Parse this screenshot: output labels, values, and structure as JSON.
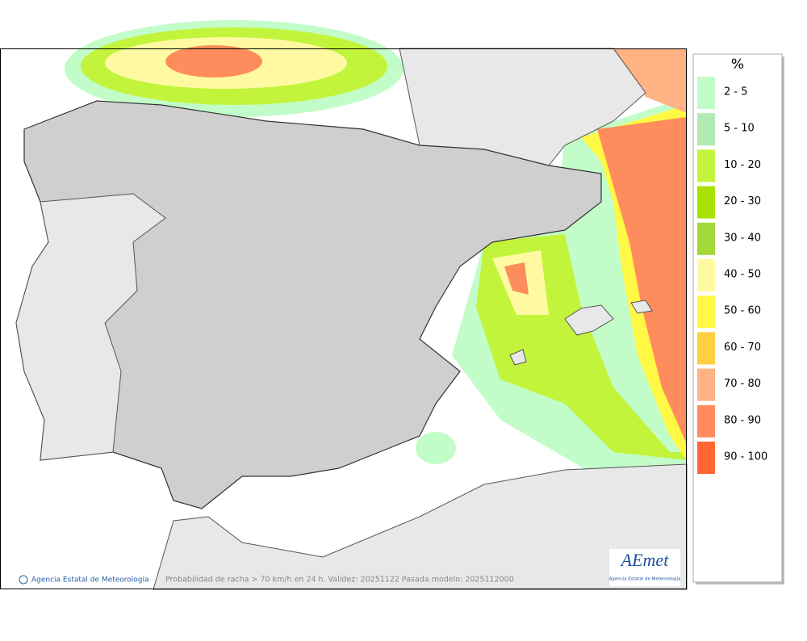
{
  "legend": {
    "title": "%",
    "items": [
      {
        "label": "2 - 5",
        "color": "#c2fcc8"
      },
      {
        "label": "5 - 10",
        "color": "#b2eab4"
      },
      {
        "label": "10 - 20",
        "color": "#c2f43c"
      },
      {
        "label": "20 - 30",
        "color": "#a8e202"
      },
      {
        "label": "30 - 40",
        "color": "#a2d838"
      },
      {
        "label": "40 - 50",
        "color": "#fffaa2"
      },
      {
        "label": "50 - 60",
        "color": "#fff844"
      },
      {
        "label": "60 - 70",
        "color": "#ffd040"
      },
      {
        "label": "70 - 80",
        "color": "#ffb284"
      },
      {
        "label": "80 - 90",
        "color": "#ff8c5c"
      },
      {
        "label": "90 - 100",
        "color": "#ff6634"
      }
    ]
  },
  "footer": {
    "credit": "Agencia Estatal de Meteorología",
    "caption": "Probabilidad de racha > 70 km/h en 24 h. Validez: 20251122 Pasada modelo: 2025112000"
  },
  "logo": {
    "name": "AEmet",
    "subtitle": "Agencia Estatal de Meteorología"
  }
}
